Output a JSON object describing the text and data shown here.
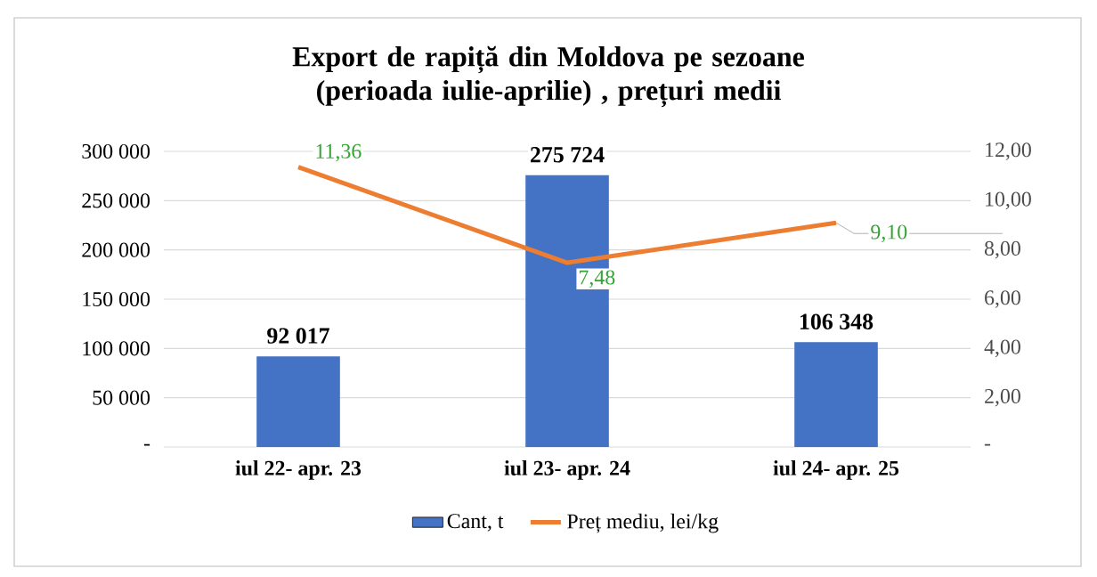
{
  "chart_data": {
    "type": "bar",
    "title": "Export de rapiță din  Moldova pe sezoane (perioada iulie-aprilie) , prețuri medii",
    "categories": [
      "iul 22- apr. 23",
      "iul 23- apr. 24",
      "iul 24- apr. 25"
    ],
    "series": [
      {
        "name": "Cant, t",
        "color": "#4472c4",
        "values": [
          92017,
          275724,
          106348
        ],
        "value_labels": [
          "92 017",
          "275 724",
          "106 348"
        ]
      },
      {
        "name": "Preț mediu, lei/kg",
        "type": "line",
        "axis": "y2",
        "color": "#ed7d31",
        "values": [
          11.36,
          7.48,
          9.1
        ],
        "value_labels": [
          "11,36",
          "7,48",
          "9,10"
        ]
      }
    ],
    "ylim": [
      0,
      300000
    ],
    "yticks": [
      {
        "value": 0,
        "label": "-"
      },
      {
        "value": 50000,
        "label": "50 000"
      },
      {
        "value": 100000,
        "label": "100 000"
      },
      {
        "value": 150000,
        "label": "150 000"
      },
      {
        "value": 200000,
        "label": "200 000"
      },
      {
        "value": 250000,
        "label": "250 000"
      },
      {
        "value": 300000,
        "label": "300 000"
      }
    ],
    "y2lim": [
      0,
      12
    ],
    "y2ticks": [
      {
        "value": 0,
        "label": "-"
      },
      {
        "value": 2,
        "label": "2,00"
      },
      {
        "value": 4,
        "label": "4,00"
      },
      {
        "value": 6,
        "label": "6,00"
      },
      {
        "value": 8,
        "label": "8,00"
      },
      {
        "value": 10,
        "label": "10,00"
      },
      {
        "value": 12,
        "label": "12,00"
      }
    ],
    "grid": "y",
    "legend": "bottom"
  }
}
